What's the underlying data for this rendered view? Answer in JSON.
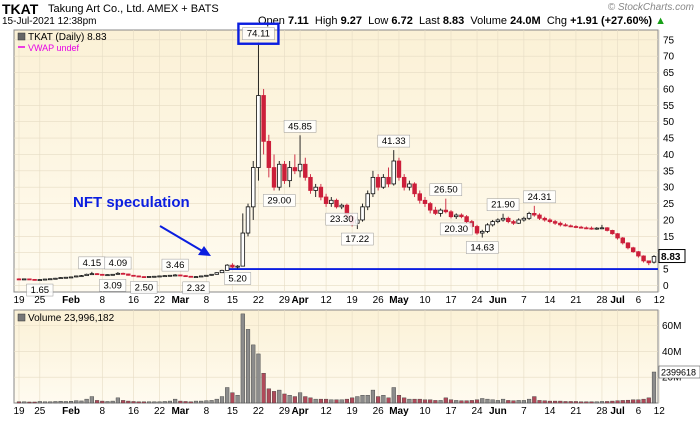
{
  "header": {
    "ticker": "TKAT",
    "company": "Takung Art Co., Ltd.  AMEX + BATS",
    "date": "15-Jul-2021 12:38pm",
    "watermark": "© StockCharts.com",
    "stats": {
      "open_label": "Open",
      "open": "7.11",
      "high_label": "High",
      "high": "9.27",
      "low_label": "Low",
      "low": "6.72",
      "last_label": "Last",
      "last": "8.83",
      "volume_label": "Volume",
      "volume": "24.0M",
      "chg_label": "Chg",
      "chg": "+1.91 (+27.60%)",
      "chg_arrow": "▲"
    }
  },
  "price_legend": {
    "series": "TKAT (Daily) 8.83",
    "overlay": "VWAP undef"
  },
  "volume_legend": {
    "series": "Volume 23,996,182"
  },
  "annotation": {
    "text": "NFT speculation"
  },
  "colors": {
    "up": "#4a4a4a",
    "down": "#cc1f3a",
    "support": "#0b1ee0",
    "panel_bg": "#fdf6e3",
    "overlay": "#e600e6"
  },
  "chart_data": {
    "type": "candlestick",
    "title": "TKAT (Daily) 8.83",
    "price_axis": {
      "ylim": [
        -2,
        78
      ],
      "ticks": [
        0,
        5,
        10,
        15,
        20,
        25,
        30,
        35,
        40,
        45,
        50,
        55,
        60,
        65,
        70,
        75
      ]
    },
    "volume_axis": {
      "ylim": [
        0,
        72
      ],
      "unit": "M",
      "ticks": [
        20,
        40,
        60
      ],
      "tick_labels": [
        "20M",
        "40M",
        "60M"
      ]
    },
    "x_tick_labels": [
      "19",
      "25",
      "Feb",
      "8",
      "16",
      "22",
      "Mar",
      "8",
      "15",
      "22",
      "29",
      "Apr",
      "12",
      "19",
      "26",
      "May",
      "10",
      "17",
      "24",
      "Jun",
      "7",
      "14",
      "21",
      "28",
      "Jul",
      "6",
      "12"
    ],
    "x_tick_index": [
      0,
      4,
      10,
      16,
      22,
      27,
      31,
      36,
      41,
      46,
      51,
      54,
      59,
      64,
      69,
      73,
      78,
      83,
      88,
      92,
      97,
      102,
      107,
      112,
      115,
      119,
      123
    ],
    "bold_ticks": [
      "Feb",
      "Mar",
      "Apr",
      "May",
      "Jun",
      "Jul"
    ],
    "last_price": 8.83,
    "support_level": 5.0,
    "price_labels": [
      {
        "text": "1.65",
        "index": 4,
        "value": 1.65,
        "pos": "below"
      },
      {
        "text": "4.15",
        "index": 14,
        "value": 4.15,
        "pos": "above"
      },
      {
        "text": "3.09",
        "index": 18,
        "value": 3.09,
        "pos": "below"
      },
      {
        "text": "4.09",
        "index": 19,
        "value": 4.09,
        "pos": "above"
      },
      {
        "text": "2.50",
        "index": 24,
        "value": 2.5,
        "pos": "below"
      },
      {
        "text": "3.46",
        "index": 30,
        "value": 3.46,
        "pos": "above"
      },
      {
        "text": "2.32",
        "index": 34,
        "value": 2.32,
        "pos": "below"
      },
      {
        "text": "5.20",
        "index": 42,
        "value": 5.2,
        "pos": "below"
      },
      {
        "text": "74.11",
        "index": 46,
        "value": 74.11,
        "pos": "above",
        "boxed": true
      },
      {
        "text": "45.85",
        "index": 54,
        "value": 45.85,
        "pos": "above"
      },
      {
        "text": "29.00",
        "index": 50,
        "value": 29.0,
        "pos": "below"
      },
      {
        "text": "23.30",
        "index": 62,
        "value": 23.3,
        "pos": "below"
      },
      {
        "text": "17.22",
        "index": 65,
        "value": 17.22,
        "pos": "below"
      },
      {
        "text": "41.33",
        "index": 72,
        "value": 41.33,
        "pos": "above"
      },
      {
        "text": "26.50",
        "index": 82,
        "value": 26.5,
        "pos": "above"
      },
      {
        "text": "20.30",
        "index": 84,
        "value": 20.3,
        "pos": "below"
      },
      {
        "text": "21.90",
        "index": 93,
        "value": 21.9,
        "pos": "above"
      },
      {
        "text": "14.63",
        "index": 89,
        "value": 14.63,
        "pos": "below"
      },
      {
        "text": "24.31",
        "index": 100,
        "value": 24.31,
        "pos": "above"
      }
    ],
    "candles": [
      {
        "o": 2.0,
        "h": 2.2,
        "l": 1.8,
        "c": 1.95,
        "v": 1.0
      },
      {
        "o": 1.95,
        "h": 2.1,
        "l": 1.8,
        "c": 2.0,
        "v": 1.0
      },
      {
        "o": 2.0,
        "h": 2.1,
        "l": 1.75,
        "c": 1.85,
        "v": 0.8
      },
      {
        "o": 1.85,
        "h": 1.95,
        "l": 1.7,
        "c": 1.8,
        "v": 0.8
      },
      {
        "o": 1.75,
        "h": 1.9,
        "l": 1.65,
        "c": 1.8,
        "v": 1.2
      },
      {
        "o": 1.8,
        "h": 2.0,
        "l": 1.75,
        "c": 1.95,
        "v": 1.0
      },
      {
        "o": 1.95,
        "h": 2.1,
        "l": 1.85,
        "c": 2.05,
        "v": 1.0
      },
      {
        "o": 2.05,
        "h": 2.3,
        "l": 2.0,
        "c": 2.2,
        "v": 1.2
      },
      {
        "o": 2.2,
        "h": 2.5,
        "l": 2.1,
        "c": 2.4,
        "v": 1.4
      },
      {
        "o": 2.4,
        "h": 2.6,
        "l": 2.3,
        "c": 2.5,
        "v": 1.2
      },
      {
        "o": 2.5,
        "h": 2.7,
        "l": 2.4,
        "c": 2.6,
        "v": 1.4
      },
      {
        "o": 2.6,
        "h": 3.0,
        "l": 2.5,
        "c": 2.9,
        "v": 1.8
      },
      {
        "o": 2.9,
        "h": 3.2,
        "l": 2.8,
        "c": 3.0,
        "v": 1.6
      },
      {
        "o": 3.0,
        "h": 3.6,
        "l": 2.9,
        "c": 3.4,
        "v": 3.0
      },
      {
        "o": 3.4,
        "h": 4.15,
        "l": 3.2,
        "c": 3.6,
        "v": 5.0
      },
      {
        "o": 3.6,
        "h": 3.8,
        "l": 3.3,
        "c": 3.4,
        "v": 2.0
      },
      {
        "o": 3.4,
        "h": 3.5,
        "l": 3.1,
        "c": 3.2,
        "v": 1.5
      },
      {
        "o": 3.2,
        "h": 3.4,
        "l": 3.1,
        "c": 3.3,
        "v": 1.2
      },
      {
        "o": 3.3,
        "h": 3.5,
        "l": 3.09,
        "c": 3.4,
        "v": 1.5
      },
      {
        "o": 3.4,
        "h": 4.09,
        "l": 3.3,
        "c": 3.7,
        "v": 4.0
      },
      {
        "o": 3.7,
        "h": 3.9,
        "l": 3.4,
        "c": 3.5,
        "v": 2.0
      },
      {
        "o": 3.5,
        "h": 3.6,
        "l": 3.0,
        "c": 3.1,
        "v": 1.5
      },
      {
        "o": 3.1,
        "h": 3.2,
        "l": 2.8,
        "c": 2.9,
        "v": 1.2
      },
      {
        "o": 2.9,
        "h": 3.0,
        "l": 2.6,
        "c": 2.7,
        "v": 1.0
      },
      {
        "o": 2.7,
        "h": 2.8,
        "l": 2.5,
        "c": 2.6,
        "v": 1.0
      },
      {
        "o": 2.6,
        "h": 2.8,
        "l": 2.55,
        "c": 2.75,
        "v": 1.0
      },
      {
        "o": 2.75,
        "h": 2.9,
        "l": 2.6,
        "c": 2.8,
        "v": 1.0
      },
      {
        "o": 2.8,
        "h": 3.0,
        "l": 2.7,
        "c": 2.9,
        "v": 1.0
      },
      {
        "o": 2.9,
        "h": 3.1,
        "l": 2.8,
        "c": 3.0,
        "v": 1.2
      },
      {
        "o": 3.0,
        "h": 3.2,
        "l": 2.9,
        "c": 3.1,
        "v": 1.5
      },
      {
        "o": 3.1,
        "h": 3.46,
        "l": 3.0,
        "c": 3.2,
        "v": 3.0
      },
      {
        "o": 3.2,
        "h": 3.3,
        "l": 2.9,
        "c": 3.0,
        "v": 1.5
      },
      {
        "o": 3.0,
        "h": 3.1,
        "l": 2.7,
        "c": 2.8,
        "v": 1.2
      },
      {
        "o": 2.8,
        "h": 2.9,
        "l": 2.5,
        "c": 2.6,
        "v": 1.0
      },
      {
        "o": 2.6,
        "h": 2.8,
        "l": 2.32,
        "c": 2.7,
        "v": 1.5
      },
      {
        "o": 2.7,
        "h": 3.0,
        "l": 2.6,
        "c": 2.9,
        "v": 1.5
      },
      {
        "o": 2.9,
        "h": 3.2,
        "l": 2.8,
        "c": 3.1,
        "v": 1.8
      },
      {
        "o": 3.1,
        "h": 3.5,
        "l": 3.0,
        "c": 3.4,
        "v": 2.0
      },
      {
        "o": 3.4,
        "h": 4.0,
        "l": 3.3,
        "c": 3.9,
        "v": 3.0
      },
      {
        "o": 3.9,
        "h": 4.8,
        "l": 3.8,
        "c": 4.6,
        "v": 5.0
      },
      {
        "o": 4.6,
        "h": 6.5,
        "l": 4.5,
        "c": 6.2,
        "v": 12.0
      },
      {
        "o": 6.2,
        "h": 6.8,
        "l": 5.3,
        "c": 5.6,
        "v": 8.0
      },
      {
        "o": 5.6,
        "h": 6.2,
        "l": 5.2,
        "c": 5.9,
        "v": 6.0
      },
      {
        "o": 5.9,
        "h": 22.0,
        "l": 5.8,
        "c": 16.0,
        "v": 69.0
      },
      {
        "o": 16.0,
        "h": 25.0,
        "l": 15.0,
        "c": 24.0,
        "v": 57.0
      },
      {
        "o": 24.0,
        "h": 38.0,
        "l": 20.0,
        "c": 36.0,
        "v": 45.0
      },
      {
        "o": 36.0,
        "h": 74.11,
        "l": 32.0,
        "c": 58.0,
        "v": 38.0
      },
      {
        "o": 58.0,
        "h": 60.0,
        "l": 40.0,
        "c": 44.0,
        "v": 23.0
      },
      {
        "o": 44.0,
        "h": 46.0,
        "l": 33.0,
        "c": 36.0,
        "v": 11.0
      },
      {
        "o": 36.0,
        "h": 40.0,
        "l": 29.0,
        "c": 30.0,
        "v": 9.0
      },
      {
        "o": 30.0,
        "h": 38.0,
        "l": 29.0,
        "c": 37.0,
        "v": 10.0
      },
      {
        "o": 37.0,
        "h": 38.0,
        "l": 31.0,
        "c": 32.0,
        "v": 7.0
      },
      {
        "o": 32.0,
        "h": 38.0,
        "l": 30.0,
        "c": 36.0,
        "v": 6.0
      },
      {
        "o": 36.0,
        "h": 40.0,
        "l": 34.0,
        "c": 35.0,
        "v": 5.0
      },
      {
        "o": 35.0,
        "h": 45.85,
        "l": 33.0,
        "c": 37.0,
        "v": 8.0
      },
      {
        "o": 37.0,
        "h": 39.0,
        "l": 32.0,
        "c": 33.0,
        "v": 5.0
      },
      {
        "o": 33.0,
        "h": 34.0,
        "l": 28.0,
        "c": 29.0,
        "v": 4.0
      },
      {
        "o": 29.0,
        "h": 31.0,
        "l": 27.0,
        "c": 30.0,
        "v": 3.0
      },
      {
        "o": 30.0,
        "h": 31.0,
        "l": 26.0,
        "c": 27.0,
        "v": 3.0
      },
      {
        "o": 27.0,
        "h": 28.0,
        "l": 24.0,
        "c": 25.0,
        "v": 3.0
      },
      {
        "o": 25.0,
        "h": 27.0,
        "l": 24.0,
        "c": 26.0,
        "v": 2.5
      },
      {
        "o": 26.0,
        "h": 26.5,
        "l": 23.5,
        "c": 24.0,
        "v": 2.5
      },
      {
        "o": 24.0,
        "h": 25.0,
        "l": 23.3,
        "c": 24.5,
        "v": 2.5
      },
      {
        "o": 24.5,
        "h": 25.0,
        "l": 20.0,
        "c": 21.0,
        "v": 3.0
      },
      {
        "o": 21.0,
        "h": 22.0,
        "l": 18.0,
        "c": 19.0,
        "v": 4.0
      },
      {
        "o": 19.0,
        "h": 21.0,
        "l": 17.22,
        "c": 20.0,
        "v": 5.0
      },
      {
        "o": 20.0,
        "h": 25.0,
        "l": 19.5,
        "c": 24.0,
        "v": 6.0
      },
      {
        "o": 24.0,
        "h": 29.0,
        "l": 23.0,
        "c": 28.0,
        "v": 6.0
      },
      {
        "o": 28.0,
        "h": 35.0,
        "l": 27.0,
        "c": 33.0,
        "v": 10.0
      },
      {
        "o": 33.0,
        "h": 34.0,
        "l": 29.0,
        "c": 30.0,
        "v": 5.0
      },
      {
        "o": 30.0,
        "h": 34.0,
        "l": 29.5,
        "c": 33.0,
        "v": 6.0
      },
      {
        "o": 33.0,
        "h": 36.0,
        "l": 30.0,
        "c": 31.0,
        "v": 4.0
      },
      {
        "o": 31.0,
        "h": 41.33,
        "l": 30.5,
        "c": 38.0,
        "v": 12.0
      },
      {
        "o": 38.0,
        "h": 39.0,
        "l": 32.0,
        "c": 33.0,
        "v": 6.0
      },
      {
        "o": 33.0,
        "h": 34.0,
        "l": 29.0,
        "c": 30.0,
        "v": 4.0
      },
      {
        "o": 30.0,
        "h": 32.0,
        "l": 29.0,
        "c": 31.0,
        "v": 3.0
      },
      {
        "o": 31.0,
        "h": 31.5,
        "l": 27.0,
        "c": 28.0,
        "v": 3.0
      },
      {
        "o": 28.0,
        "h": 29.0,
        "l": 25.0,
        "c": 26.0,
        "v": 3.0
      },
      {
        "o": 26.0,
        "h": 27.0,
        "l": 24.0,
        "c": 25.0,
        "v": 2.5
      },
      {
        "o": 25.0,
        "h": 25.5,
        "l": 22.0,
        "c": 23.0,
        "v": 2.5
      },
      {
        "o": 23.0,
        "h": 24.0,
        "l": 21.5,
        "c": 22.0,
        "v": 2.0
      },
      {
        "o": 22.0,
        "h": 23.5,
        "l": 21.0,
        "c": 23.0,
        "v": 2.0
      },
      {
        "o": 23.0,
        "h": 26.5,
        "l": 22.0,
        "c": 22.5,
        "v": 4.0
      },
      {
        "o": 22.5,
        "h": 23.0,
        "l": 20.5,
        "c": 21.0,
        "v": 2.5
      },
      {
        "o": 21.0,
        "h": 22.0,
        "l": 20.3,
        "c": 21.5,
        "v": 2.0
      },
      {
        "o": 21.5,
        "h": 22.0,
        "l": 20.5,
        "c": 21.0,
        "v": 1.8
      },
      {
        "o": 21.0,
        "h": 21.5,
        "l": 19.0,
        "c": 19.5,
        "v": 1.8
      },
      {
        "o": 19.5,
        "h": 20.0,
        "l": 17.5,
        "c": 18.0,
        "v": 2.0
      },
      {
        "o": 18.0,
        "h": 18.5,
        "l": 15.5,
        "c": 16.0,
        "v": 2.5
      },
      {
        "o": 16.0,
        "h": 17.0,
        "l": 14.63,
        "c": 16.5,
        "v": 3.5
      },
      {
        "o": 16.5,
        "h": 19.0,
        "l": 16.0,
        "c": 18.5,
        "v": 3.0
      },
      {
        "o": 18.5,
        "h": 20.0,
        "l": 18.0,
        "c": 19.5,
        "v": 2.5
      },
      {
        "o": 19.5,
        "h": 20.5,
        "l": 19.0,
        "c": 20.0,
        "v": 2.0
      },
      {
        "o": 20.0,
        "h": 21.9,
        "l": 19.5,
        "c": 20.5,
        "v": 3.0
      },
      {
        "o": 20.5,
        "h": 21.0,
        "l": 19.0,
        "c": 19.5,
        "v": 2.0
      },
      {
        "o": 19.5,
        "h": 20.0,
        "l": 18.5,
        "c": 19.0,
        "v": 1.8
      },
      {
        "o": 19.0,
        "h": 20.5,
        "l": 18.8,
        "c": 20.0,
        "v": 2.0
      },
      {
        "o": 20.0,
        "h": 21.0,
        "l": 19.5,
        "c": 20.5,
        "v": 2.0
      },
      {
        "o": 20.5,
        "h": 22.5,
        "l": 20.0,
        "c": 22.0,
        "v": 3.0
      },
      {
        "o": 22.0,
        "h": 24.31,
        "l": 21.0,
        "c": 21.5,
        "v": 5.0
      },
      {
        "o": 21.5,
        "h": 22.0,
        "l": 20.0,
        "c": 20.5,
        "v": 2.0
      },
      {
        "o": 20.5,
        "h": 21.0,
        "l": 19.5,
        "c": 20.0,
        "v": 1.8
      },
      {
        "o": 20.0,
        "h": 20.5,
        "l": 19.0,
        "c": 19.5,
        "v": 1.5
      },
      {
        "o": 19.5,
        "h": 20.0,
        "l": 18.5,
        "c": 19.0,
        "v": 1.5
      },
      {
        "o": 19.0,
        "h": 19.5,
        "l": 18.0,
        "c": 18.5,
        "v": 1.5
      },
      {
        "o": 18.5,
        "h": 19.0,
        "l": 18.0,
        "c": 18.2,
        "v": 1.2
      },
      {
        "o": 18.2,
        "h": 18.6,
        "l": 17.8,
        "c": 18.0,
        "v": 1.2
      },
      {
        "o": 18.0,
        "h": 18.4,
        "l": 17.5,
        "c": 17.8,
        "v": 1.2
      },
      {
        "o": 17.8,
        "h": 18.2,
        "l": 17.4,
        "c": 17.6,
        "v": 1.0
      },
      {
        "o": 17.6,
        "h": 18.0,
        "l": 17.2,
        "c": 17.5,
        "v": 1.0
      },
      {
        "o": 17.5,
        "h": 18.0,
        "l": 17.0,
        "c": 17.3,
        "v": 1.0
      },
      {
        "o": 17.3,
        "h": 17.8,
        "l": 17.0,
        "c": 17.5,
        "v": 1.0
      },
      {
        "o": 17.5,
        "h": 18.5,
        "l": 17.2,
        "c": 17.6,
        "v": 1.2
      },
      {
        "o": 17.6,
        "h": 17.8,
        "l": 16.5,
        "c": 16.8,
        "v": 1.2
      },
      {
        "o": 16.8,
        "h": 17.0,
        "l": 15.5,
        "c": 15.8,
        "v": 1.5
      },
      {
        "o": 15.8,
        "h": 16.0,
        "l": 14.0,
        "c": 14.5,
        "v": 1.8
      },
      {
        "o": 14.5,
        "h": 14.8,
        "l": 12.5,
        "c": 13.0,
        "v": 2.0
      },
      {
        "o": 13.0,
        "h": 13.2,
        "l": 11.0,
        "c": 11.5,
        "v": 2.2
      },
      {
        "o": 11.5,
        "h": 11.8,
        "l": 10.0,
        "c": 10.3,
        "v": 2.5
      },
      {
        "o": 10.3,
        "h": 10.5,
        "l": 8.5,
        "c": 9.0,
        "v": 2.5
      },
      {
        "o": 9.0,
        "h": 9.2,
        "l": 7.0,
        "c": 7.5,
        "v": 3.0
      },
      {
        "o": 7.5,
        "h": 7.6,
        "l": 6.2,
        "c": 6.92,
        "v": 4.0
      },
      {
        "o": 7.11,
        "h": 9.27,
        "l": 6.72,
        "c": 8.83,
        "v": 24.0
      }
    ]
  }
}
